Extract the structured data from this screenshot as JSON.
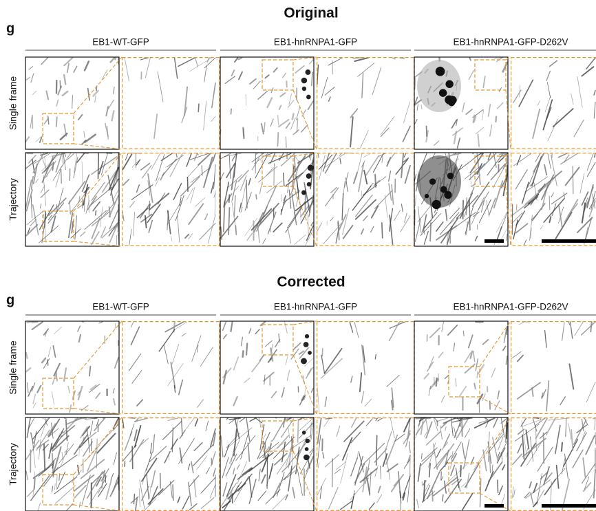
{
  "sections": [
    {
      "title": "Original",
      "panel_label": "g",
      "columns": [
        "EB1-WT-GFP",
        "EB1-hnRNPA1-GFP",
        "EB1-hnRNPA1-GFP-D262V"
      ],
      "rows": [
        "Single frame",
        "Trajectory"
      ]
    },
    {
      "title": "Corrected",
      "panel_label": "g",
      "columns": [
        "EB1-WT-GFP",
        "EB1-hnRNPA1-GFP",
        "EB1-hnRNPA1-GFP-D262V"
      ],
      "rows": [
        "Single frame",
        "Trajectory"
      ]
    }
  ]
}
